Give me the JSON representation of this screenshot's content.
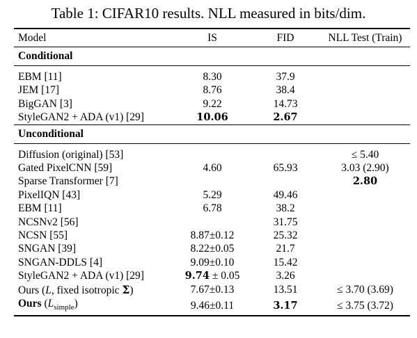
{
  "caption": "Table 1: CIFAR10 results. NLL measured in bits/dim.",
  "headers": {
    "model": "Model",
    "is": "IS",
    "fid": "FID",
    "nll": "NLL Test (Train)"
  },
  "sections": {
    "conditional": "Conditional",
    "unconditional": "Unconditional"
  },
  "conditional_rows": [
    {
      "model": "EBM [11]",
      "is": "8.30",
      "fid": "37.9",
      "nll": ""
    },
    {
      "model": "JEM [17]",
      "is": "8.76",
      "fid": "38.4",
      "nll": ""
    },
    {
      "model": "BigGAN [3]",
      "is": "9.22",
      "fid": "14.73",
      "nll": ""
    },
    {
      "model": "StyleGAN2 + ADA (v1) [29]",
      "is": "10.06",
      "fid": "2.67",
      "nll": ""
    }
  ],
  "unconditional_rows": [
    {
      "model": "Diffusion (original) [53]",
      "is": "",
      "fid": "",
      "nll": "≤ 5.40"
    },
    {
      "model": "Gated PixelCNN [59]",
      "is": "4.60",
      "fid": "65.93",
      "nll": "3.03 (2.90)"
    },
    {
      "model": "Sparse Transformer [7]",
      "is": "",
      "fid": "",
      "nll": "2.80"
    },
    {
      "model": "PixelIQN [43]",
      "is": "5.29",
      "fid": "49.46",
      "nll": ""
    },
    {
      "model": "EBM [11]",
      "is": "6.78",
      "fid": "38.2",
      "nll": ""
    },
    {
      "model": "NCSNv2 [56]",
      "is": "",
      "fid": "31.75",
      "nll": ""
    },
    {
      "model": "NCSN [55]",
      "is": "8.87±0.12",
      "fid": "25.32",
      "nll": ""
    },
    {
      "model": "SNGAN [39]",
      "is": "8.22±0.05",
      "fid": "21.7",
      "nll": ""
    },
    {
      "model": "SNGAN-DDLS [4]",
      "is": "9.09±0.10",
      "fid": "15.42",
      "nll": ""
    },
    {
      "model": "StyleGAN2 + ADA (v1) [29]",
      "is_bold": "9.74",
      "is_rest": " ± 0.05",
      "fid": "3.26",
      "nll": ""
    },
    {
      "model_prefix": "Ours (",
      "model_var": "L",
      "model_mid": ", fixed isotropic ",
      "model_sigma": "Σ",
      "model_suffix": ")",
      "is": "7.67±0.13",
      "fid": "13.51",
      "nll": "≤ 3.70 (3.69)"
    },
    {
      "model_bold": "Ours",
      "model_open": " (",
      "model_var": "L",
      "model_sub": "simple",
      "model_close": ")",
      "is": "9.46±0.11",
      "fid": "3.17",
      "nll": "≤ 3.75 (3.72)"
    }
  ]
}
